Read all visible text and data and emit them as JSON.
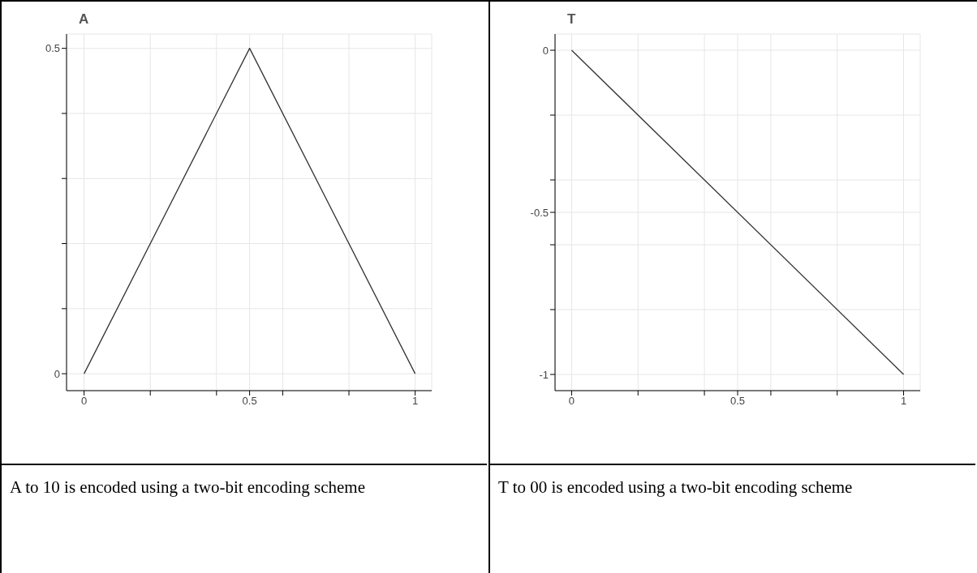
{
  "chart_data": [
    {
      "type": "line",
      "title": "A",
      "x": [
        0,
        0.5,
        1
      ],
      "values": [
        0,
        0.5,
        0
      ],
      "color": "#333333",
      "xlim": [
        -0.053,
        1.05
      ],
      "ylim": [
        -0.026,
        0.522
      ],
      "xticks": [
        0,
        {
          "value": 0.2,
          "label": null
        },
        {
          "value": 0.4,
          "label": null
        },
        0.5,
        {
          "value": 0.6,
          "label": null
        },
        {
          "value": 0.8,
          "label": null
        },
        1
      ],
      "yticks": [
        0,
        {
          "value": 0.1,
          "label": null
        },
        {
          "value": 0.2,
          "label": null
        },
        {
          "value": 0.3,
          "label": null
        },
        {
          "value": 0.4,
          "label": null
        },
        0.5
      ],
      "grid": true,
      "marker": "none",
      "line_style": "solid",
      "annotations": [
        "A to 10 is encoded using a two-bit encoding scheme"
      ]
    },
    {
      "type": "line",
      "title": "T",
      "x": [
        0,
        1
      ],
      "values": [
        0,
        -1
      ],
      "color": "#333333",
      "xlim": [
        -0.05,
        1.05
      ],
      "ylim": [
        -1.05,
        0.05
      ],
      "xticks": [
        0,
        {
          "value": 0.2,
          "label": null
        },
        {
          "value": 0.4,
          "label": null
        },
        0.5,
        {
          "value": 0.6,
          "label": null
        },
        {
          "value": 0.8,
          "label": null
        },
        1
      ],
      "yticks": [
        -1,
        {
          "value": -0.8,
          "label": null
        },
        {
          "value": -0.6,
          "label": null
        },
        -0.5,
        {
          "value": -0.4,
          "label": null
        },
        {
          "value": -0.2,
          "label": null
        },
        0
      ],
      "grid": true,
      "marker": "none",
      "line_style": "solid",
      "annotations": [
        "T to 00 is encoded using a two-bit encoding scheme"
      ]
    }
  ]
}
